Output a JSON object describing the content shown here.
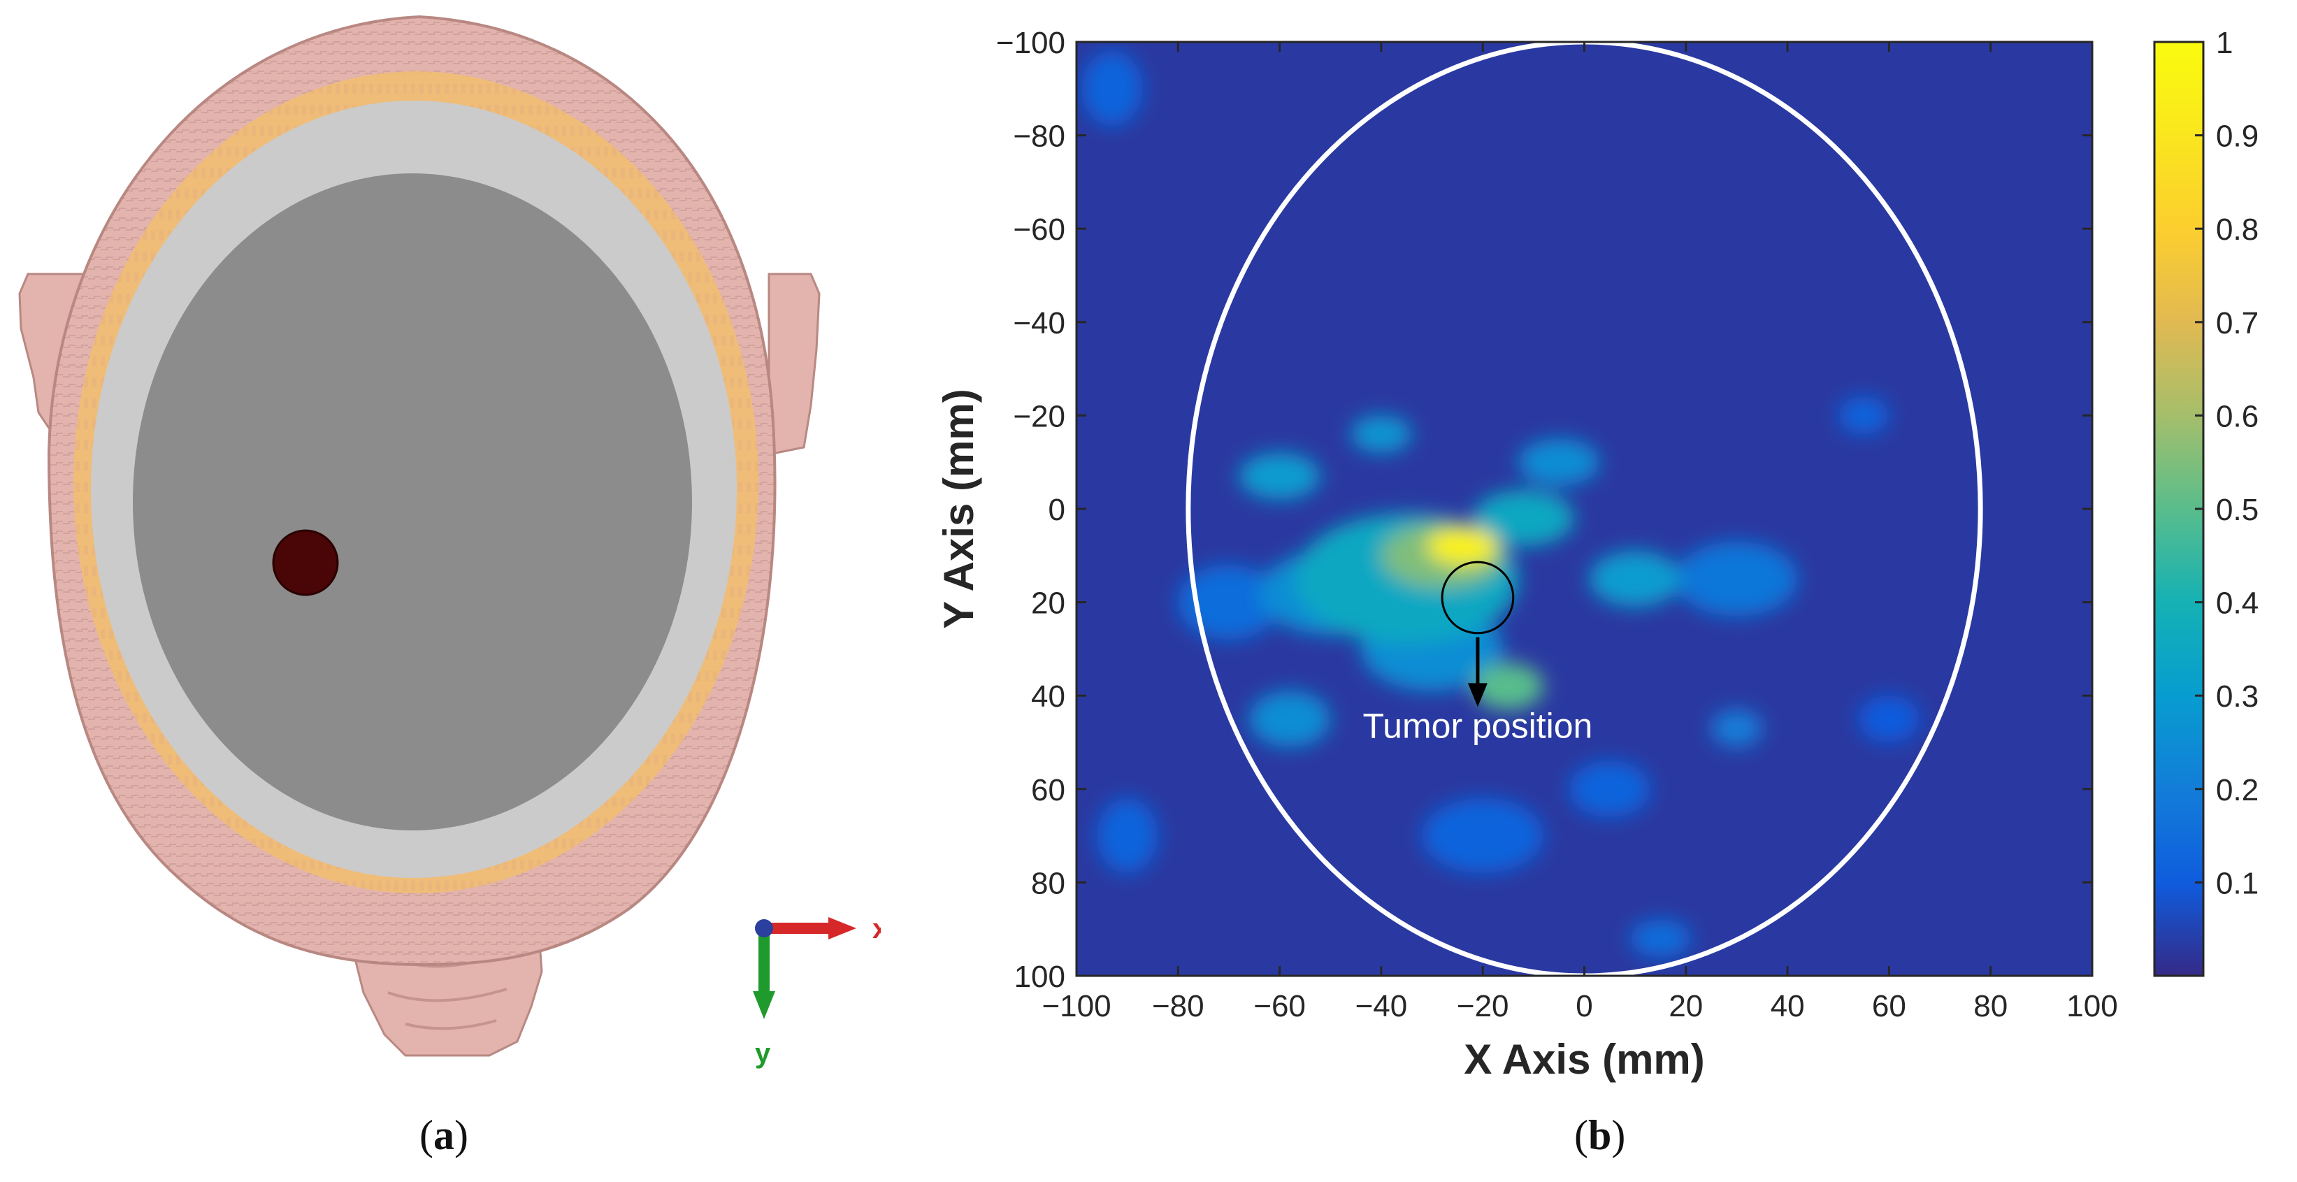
{
  "panels": [
    {
      "label": "a",
      "caption_open": "(",
      "caption_close": ")"
    },
    {
      "label": "b",
      "caption_open": "(",
      "caption_close": ")"
    }
  ],
  "head_model": {
    "axis_labels": {
      "x": "x",
      "y": "y"
    },
    "colors": {
      "skin": "#e3b3ae",
      "skin_dark": "#b98882",
      "fat": "#efbd78",
      "skull": "#cbcbcb",
      "brain": "#8c8c8c",
      "tumor": "#4a0606",
      "x_arrow": "#d62828",
      "y_arrow": "#1f9a2c"
    }
  },
  "chart_data": {
    "type": "heatmap",
    "title": "",
    "xlabel": "X Axis (mm)",
    "ylabel": "Y Axis (mm)",
    "xlim": [
      -100,
      100
    ],
    "ylim": [
      -100,
      100
    ],
    "y_direction": "reversed",
    "xticks": [
      -100,
      -80,
      -60,
      -40,
      -20,
      0,
      20,
      40,
      60,
      80,
      100
    ],
    "yticks": [
      -100,
      -80,
      -60,
      -40,
      -20,
      0,
      20,
      40,
      60,
      80,
      100
    ],
    "tick_labels": [
      "−100",
      "−80",
      "−60",
      "−40",
      "−20",
      "0",
      "20",
      "40",
      "60",
      "80",
      "100"
    ],
    "colorbar": {
      "range": [
        0,
        1
      ],
      "ticks": [
        0.1,
        0.2,
        0.3,
        0.4,
        0.5,
        0.6,
        0.7,
        0.8,
        0.9,
        1
      ],
      "tick_labels": [
        "0.1",
        "0.2",
        "0.3",
        "0.4",
        "0.5",
        "0.6",
        "0.7",
        "0.8",
        "0.9",
        "1"
      ],
      "colormap": "parula"
    },
    "background_value": 0.03,
    "blobs": [
      {
        "x": -24,
        "y": 8,
        "rx": 7,
        "ry": 4,
        "value": 0.95
      },
      {
        "x": -28,
        "y": 10,
        "rx": 12,
        "ry": 7,
        "value": 0.55
      },
      {
        "x": -35,
        "y": 15,
        "rx": 22,
        "ry": 14,
        "value": 0.35
      },
      {
        "x": -15,
        "y": 38,
        "rx": 7,
        "ry": 5,
        "value": 0.5
      },
      {
        "x": -12,
        "y": 2,
        "rx": 10,
        "ry": 6,
        "value": 0.35
      },
      {
        "x": 10,
        "y": 15,
        "rx": 9,
        "ry": 6,
        "value": 0.3
      },
      {
        "x": -60,
        "y": -7,
        "rx": 8,
        "ry": 5,
        "value": 0.3
      },
      {
        "x": -40,
        "y": -16,
        "rx": 6,
        "ry": 4,
        "value": 0.28
      },
      {
        "x": -58,
        "y": 45,
        "rx": 8,
        "ry": 6,
        "value": 0.25
      },
      {
        "x": -5,
        "y": -10,
        "rx": 8,
        "ry": 5,
        "value": 0.25
      },
      {
        "x": -50,
        "y": 18,
        "rx": 14,
        "ry": 9,
        "value": 0.25
      },
      {
        "x": -30,
        "y": 30,
        "rx": 14,
        "ry": 9,
        "value": 0.25
      },
      {
        "x": 30,
        "y": 15,
        "rx": 12,
        "ry": 8,
        "value": 0.18
      },
      {
        "x": 30,
        "y": 47,
        "rx": 5,
        "ry": 4,
        "value": 0.2
      },
      {
        "x": 15,
        "y": 92,
        "rx": 6,
        "ry": 4,
        "value": 0.15
      },
      {
        "x": -70,
        "y": 20,
        "rx": 10,
        "ry": 8,
        "value": 0.15
      },
      {
        "x": 5,
        "y": 60,
        "rx": 8,
        "ry": 6,
        "value": 0.12
      },
      {
        "x": -90,
        "y": 70,
        "rx": 6,
        "ry": 8,
        "value": 0.12
      },
      {
        "x": -93,
        "y": -90,
        "rx": 6,
        "ry": 8,
        "value": 0.12
      },
      {
        "x": 55,
        "y": -20,
        "rx": 5,
        "ry": 4,
        "value": 0.12
      },
      {
        "x": -20,
        "y": 70,
        "rx": 12,
        "ry": 8,
        "value": 0.12
      },
      {
        "x": 60,
        "y": 45,
        "rx": 6,
        "ry": 5,
        "value": 0.1
      }
    ],
    "overlays": {
      "head_outline": {
        "cx": 0,
        "cy": 0,
        "rx": 78,
        "ry": 100,
        "color": "#ffffff"
      },
      "tumor_marker": {
        "cx": -21,
        "cy": 19,
        "r": 7,
        "color": "#000000"
      },
      "annotation": {
        "text": "Tumor position",
        "x": -21,
        "y": 49,
        "color": "#ffffff"
      }
    }
  }
}
